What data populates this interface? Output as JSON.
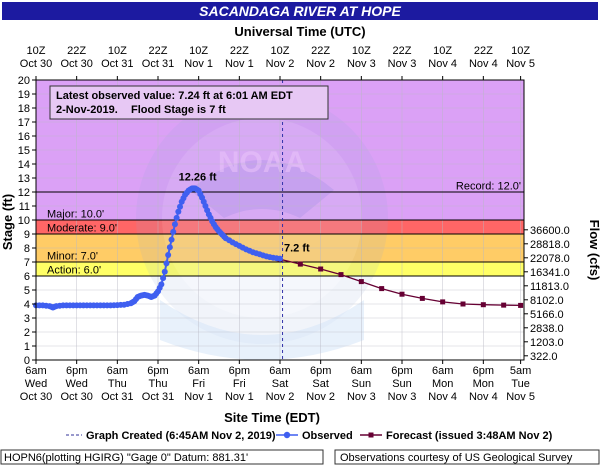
{
  "title": "SACANDAGA RIVER AT HOPE",
  "top_axis_title": "Universal Time (UTC)",
  "bottom_axis_title": "Site Time (EDT)",
  "left_axis_title": "Stage (ft)",
  "right_axis_title": "Flow (cfs)",
  "info_box": {
    "line1": "Latest observed value: 7.24 ft at 6:01 AM EDT",
    "line2_date": "2-Nov-2019.",
    "line2_flood": "Flood Stage is 7 ft"
  },
  "peak_label": "12.26 ft",
  "latest_label": "7.2 ft",
  "legend": {
    "created": "Graph Created (6:45AM Nov 2, 2019)",
    "observed": "Observed",
    "forecast": "Forecast (issued 3:48AM Nov 2)"
  },
  "footer": {
    "left": "HOPN6(plotting HGIRG) \"Gage 0\" Datum: 881.31'",
    "right": "Observations courtesy of US Geological Survey"
  },
  "watermark": "NATIONAL OCEANIC AND ATMOSPHERIC ADMINISTRATION · U.S. DEPARTMENT OF COMMERCE · NOAA",
  "colors": {
    "record_band": "#e3a6f2",
    "major_band": "#cc99ff",
    "moderate_band": "#ff6666",
    "minor_band": "#ffcc66",
    "action_band": "#ffff66",
    "observed_line": "#3f5ff0",
    "forecast_line": "#660033",
    "title_bar": "#1c1aa0"
  },
  "chart_data": {
    "type": "line",
    "x_axis": "time, hours from Oct 30 6am EDT",
    "xlim": [
      0,
      144
    ],
    "ylim": [
      0,
      20
    ],
    "bottom_ticks": [
      {
        "t": 0,
        "l1": "6am",
        "l2": "Wed",
        "l3": "Oct 30"
      },
      {
        "t": 12,
        "l1": "6pm",
        "l2": "Wed",
        "l3": "Oct 30"
      },
      {
        "t": 24,
        "l1": "6am",
        "l2": "Thu",
        "l3": "Oct 31"
      },
      {
        "t": 36,
        "l1": "6pm",
        "l2": "Thu",
        "l3": "Oct 31"
      },
      {
        "t": 48,
        "l1": "6am",
        "l2": "Fri",
        "l3": "Nov 1"
      },
      {
        "t": 60,
        "l1": "6pm",
        "l2": "Fri",
        "l3": "Nov 1"
      },
      {
        "t": 72,
        "l1": "6am",
        "l2": "Sat",
        "l3": "Nov 2"
      },
      {
        "t": 84,
        "l1": "6pm",
        "l2": "Sat",
        "l3": "Nov 2"
      },
      {
        "t": 96,
        "l1": "6am",
        "l2": "Sun",
        "l3": "Nov 3"
      },
      {
        "t": 108,
        "l1": "6pm",
        "l2": "Sun",
        "l3": "Nov 3"
      },
      {
        "t": 120,
        "l1": "6am",
        "l2": "Mon",
        "l3": "Nov 4"
      },
      {
        "t": 132,
        "l1": "6pm",
        "l2": "Mon",
        "l3": "Nov 4"
      },
      {
        "t": 143,
        "l1": "5am",
        "l2": "Tue",
        "l3": "Nov 5"
      }
    ],
    "top_ticks": [
      {
        "t": 0,
        "l1": "10Z",
        "l2": "Oct 30"
      },
      {
        "t": 12,
        "l1": "22Z",
        "l2": "Oct 30"
      },
      {
        "t": 24,
        "l1": "10Z",
        "l2": "Oct 31"
      },
      {
        "t": 36,
        "l1": "22Z",
        "l2": "Oct 31"
      },
      {
        "t": 48,
        "l1": "10Z",
        "l2": "Nov 1"
      },
      {
        "t": 60,
        "l1": "22Z",
        "l2": "Nov 1"
      },
      {
        "t": 72,
        "l1": "10Z",
        "l2": "Nov 2"
      },
      {
        "t": 84,
        "l1": "22Z",
        "l2": "Nov 2"
      },
      {
        "t": 96,
        "l1": "10Z",
        "l2": "Nov 3"
      },
      {
        "t": 108,
        "l1": "22Z",
        "l2": "Nov 3"
      },
      {
        "t": 120,
        "l1": "10Z",
        "l2": "Nov 4"
      },
      {
        "t": 132,
        "l1": "22Z",
        "l2": "Nov 4"
      },
      {
        "t": 143,
        "l1": "10Z",
        "l2": "Nov 5"
      }
    ],
    "y_ticks": [
      0,
      1,
      2,
      3,
      4,
      5,
      6,
      7,
      8,
      9,
      10,
      11,
      12,
      13,
      14,
      15,
      16,
      17,
      18,
      19,
      20
    ],
    "flow_ticks": [
      {
        "stage": 0.3,
        "label": "322.0"
      },
      {
        "stage": 1.3,
        "label": "1203.0"
      },
      {
        "stage": 2.3,
        "label": "2838.0"
      },
      {
        "stage": 3.3,
        "label": "5166.0"
      },
      {
        "stage": 4.3,
        "label": "8102.0"
      },
      {
        "stage": 5.3,
        "label": "11813.0"
      },
      {
        "stage": 6.3,
        "label": "16341.0"
      },
      {
        "stage": 7.3,
        "label": "22078.0"
      },
      {
        "stage": 8.3,
        "label": "28818.0"
      },
      {
        "stage": 9.3,
        "label": "36600.0"
      }
    ],
    "thresholds": [
      {
        "name": "Record",
        "label": "Record: 12.0'",
        "value": 12.0
      },
      {
        "name": "Major",
        "label": "Major: 10.0'",
        "value": 10.0
      },
      {
        "name": "Moderate",
        "label": "Moderate: 9.0'",
        "value": 9.0
      },
      {
        "name": "Minor",
        "label": "Minor: 7.0'",
        "value": 7.0
      },
      {
        "name": "Action",
        "label": "Action: 6.0'",
        "value": 6.0
      }
    ],
    "graph_created_t": 72.75,
    "peak": {
      "t": 46.5,
      "stage": 12.26
    },
    "latest": {
      "t": 72,
      "stage": 7.24
    },
    "series": [
      {
        "name": "Observed",
        "points": [
          [
            0,
            3.9
          ],
          [
            2,
            3.9
          ],
          [
            4,
            3.85
          ],
          [
            5,
            3.75
          ],
          [
            6,
            3.85
          ],
          [
            8,
            3.9
          ],
          [
            10,
            3.9
          ],
          [
            12,
            3.9
          ],
          [
            14,
            3.9
          ],
          [
            16,
            3.9
          ],
          [
            18,
            3.9
          ],
          [
            20,
            3.9
          ],
          [
            22,
            3.9
          ],
          [
            24,
            3.92
          ],
          [
            26,
            3.95
          ],
          [
            28,
            4.05
          ],
          [
            29,
            4.2
          ],
          [
            30,
            4.5
          ],
          [
            31,
            4.6
          ],
          [
            32,
            4.65
          ],
          [
            33,
            4.6
          ],
          [
            34,
            4.5
          ],
          [
            35,
            4.6
          ],
          [
            36,
            4.9
          ],
          [
            37,
            5.4
          ],
          [
            38,
            6.3
          ],
          [
            39,
            7.5
          ],
          [
            40,
            8.6
          ],
          [
            41,
            9.7
          ],
          [
            42,
            10.6
          ],
          [
            43,
            11.3
          ],
          [
            44,
            11.8
          ],
          [
            45,
            12.1
          ],
          [
            46,
            12.25
          ],
          [
            46.5,
            12.26
          ],
          [
            47,
            12.25
          ],
          [
            48,
            12.1
          ],
          [
            49,
            11.6
          ],
          [
            50,
            11.0
          ],
          [
            51,
            10.4
          ],
          [
            52,
            9.9
          ],
          [
            53,
            9.5
          ],
          [
            54,
            9.2
          ],
          [
            55,
            8.95
          ],
          [
            56,
            8.7
          ],
          [
            58,
            8.4
          ],
          [
            60,
            8.15
          ],
          [
            62,
            7.9
          ],
          [
            64,
            7.7
          ],
          [
            66,
            7.55
          ],
          [
            68,
            7.4
          ],
          [
            70,
            7.3
          ],
          [
            72,
            7.24
          ]
        ]
      },
      {
        "name": "Forecast",
        "points": [
          [
            72,
            7.2
          ],
          [
            78,
            6.85
          ],
          [
            84,
            6.5
          ],
          [
            90,
            6.1
          ],
          [
            96,
            5.6
          ],
          [
            102,
            5.1
          ],
          [
            108,
            4.7
          ],
          [
            114,
            4.4
          ],
          [
            120,
            4.15
          ],
          [
            126,
            4.0
          ],
          [
            132,
            3.95
          ],
          [
            138,
            3.92
          ],
          [
            143,
            3.9
          ]
        ]
      }
    ]
  }
}
